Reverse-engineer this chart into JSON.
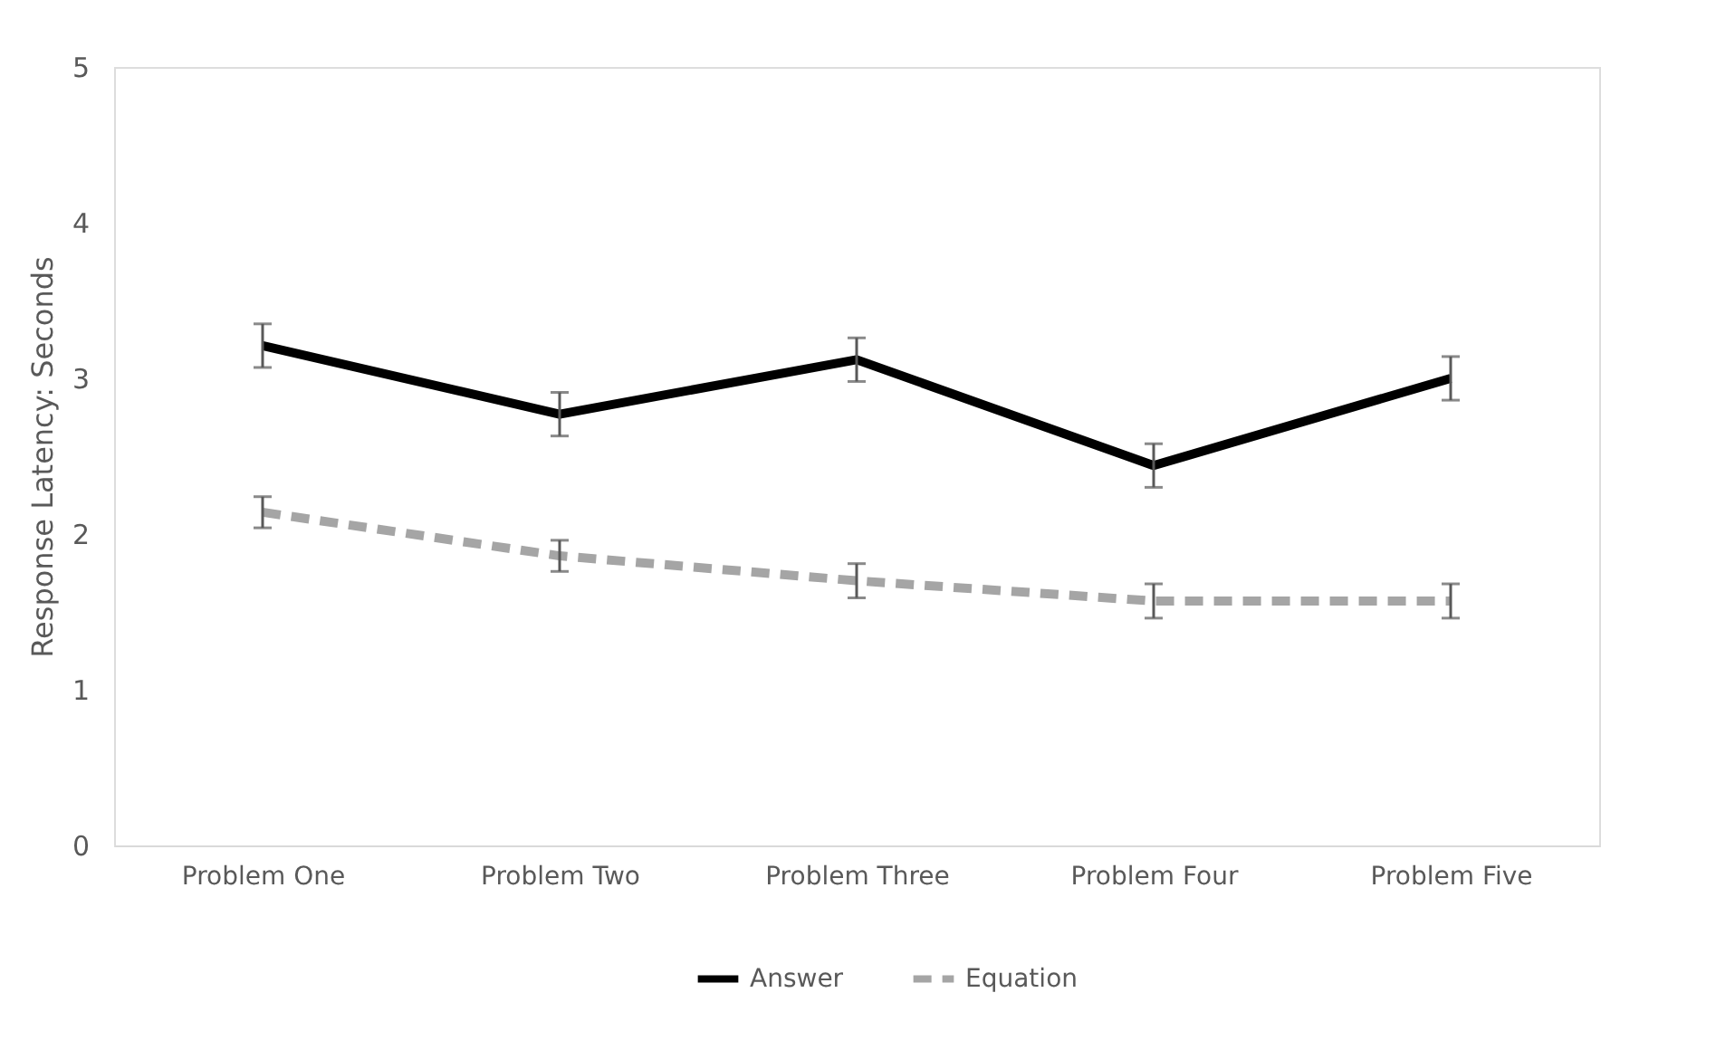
{
  "chart_data": {
    "type": "line",
    "ylabel": "Response Latency: Seconds",
    "categories": [
      "Problem One",
      "Problem Two",
      "Problem Three",
      "Problem Four",
      "Problem Five"
    ],
    "series": [
      {
        "name": "Answer",
        "color": "#000000",
        "line_style": "solid",
        "values": [
          3.21,
          2.77,
          3.12,
          2.44,
          3.0
        ],
        "errors": [
          0.14,
          0.14,
          0.14,
          0.14,
          0.14
        ]
      },
      {
        "name": "Equation",
        "color": "#a5a5a5",
        "line_style": "dashed",
        "values": [
          2.14,
          1.86,
          1.7,
          1.57,
          1.57
        ],
        "errors": [
          0.1,
          0.1,
          0.11,
          0.11,
          0.11
        ]
      }
    ],
    "ylim": [
      0,
      5
    ],
    "yticks": [
      {
        "value": 0,
        "label": "0"
      },
      {
        "value": 1,
        "label": "1"
      },
      {
        "value": 2,
        "label": "2"
      },
      {
        "value": 3,
        "label": "3"
      },
      {
        "value": 4,
        "label": "4"
      },
      {
        "value": 5,
        "label": "5"
      }
    ],
    "grid": false,
    "legend": "bottom",
    "marker": "none"
  }
}
